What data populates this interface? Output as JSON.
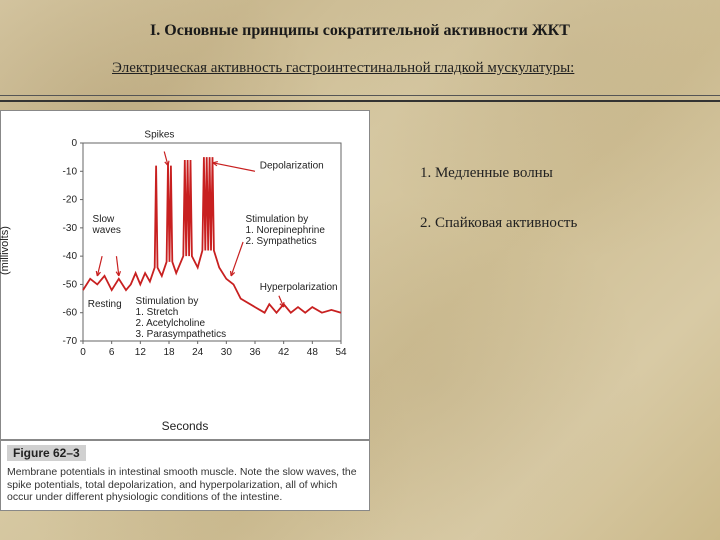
{
  "title": "I. Основные принципы сократительной активности ЖКТ",
  "subtitle": "Электрическая активность гастроинтестинальной гладкой мускулатуры:",
  "points": {
    "p1": "1. Медленные волны",
    "p2": "2. Спайковая активность"
  },
  "figure": {
    "label": "Figure 62–3",
    "caption": "Membrane potentials in intestinal smooth muscle. Note the slow waves, the spike potentials, total depolarization, and hyperpolarization, all of which occur under different physiologic conditions of the intestine.",
    "chart": {
      "type": "line",
      "xlabel": "Seconds",
      "ylabel": "Membrane potential\n(millivolts)",
      "xlim": [
        0,
        54
      ],
      "ylim": [
        -70,
        0
      ],
      "xticks": [
        0,
        6,
        12,
        18,
        24,
        30,
        36,
        42,
        48,
        54
      ],
      "yticks": [
        0,
        -10,
        -20,
        -30,
        -40,
        -50,
        -60,
        -70
      ],
      "grid_color": "#666",
      "background_color": "#ffffff",
      "curve_color": "#c82020",
      "curve_width": 1.8,
      "arrow_color": "#c82020",
      "points": [
        [
          0,
          -52
        ],
        [
          1.5,
          -48
        ],
        [
          3,
          -50
        ],
        [
          4.5,
          -47
        ],
        [
          6,
          -52
        ],
        [
          7.5,
          -48
        ],
        [
          9,
          -52
        ],
        [
          10,
          -50
        ],
        [
          11,
          -46
        ],
        [
          12,
          -50
        ],
        [
          13,
          -46
        ],
        [
          14,
          -49
        ],
        [
          15,
          -44
        ],
        [
          15.3,
          -8
        ],
        [
          15.6,
          -44
        ],
        [
          16.5,
          -47
        ],
        [
          17.5,
          -42
        ],
        [
          17.8,
          -7
        ],
        [
          18.1,
          -42
        ],
        [
          18.4,
          -8
        ],
        [
          18.7,
          -42
        ],
        [
          19.5,
          -46
        ],
        [
          21,
          -40
        ],
        [
          21.3,
          -6
        ],
        [
          21.6,
          -40
        ],
        [
          21.9,
          -6
        ],
        [
          22.2,
          -40
        ],
        [
          22.5,
          -6
        ],
        [
          22.8,
          -40
        ],
        [
          24,
          -44
        ],
        [
          25,
          -38
        ],
        [
          25.3,
          -5
        ],
        [
          25.6,
          -38
        ],
        [
          25.9,
          -5
        ],
        [
          26.2,
          -38
        ],
        [
          26.5,
          -5
        ],
        [
          26.8,
          -38
        ],
        [
          27.1,
          -5
        ],
        [
          27.4,
          -38
        ],
        [
          28.5,
          -44
        ],
        [
          30,
          -48
        ],
        [
          31.5,
          -50
        ],
        [
          33,
          -55
        ],
        [
          36,
          -58
        ],
        [
          38,
          -60
        ],
        [
          39,
          -57
        ],
        [
          40.5,
          -60
        ],
        [
          42,
          -57
        ],
        [
          43.5,
          -60
        ],
        [
          45,
          -58
        ],
        [
          46.5,
          -60
        ],
        [
          48,
          -58
        ],
        [
          50,
          -60
        ],
        [
          52,
          -59
        ],
        [
          54,
          -60
        ]
      ],
      "annotations": {
        "spikes": "Spikes",
        "depol": "Depolarization",
        "slow": "Slow\nwaves",
        "resting": "Resting",
        "stim1": "Stimulation by\n1. Stretch\n2. Acetylcholine\n3. Parasympathetics",
        "stim2": "Stimulation by\n1. Norepinephrine\n2. Sympathetics",
        "hyper": "Hyperpolarization"
      }
    }
  }
}
